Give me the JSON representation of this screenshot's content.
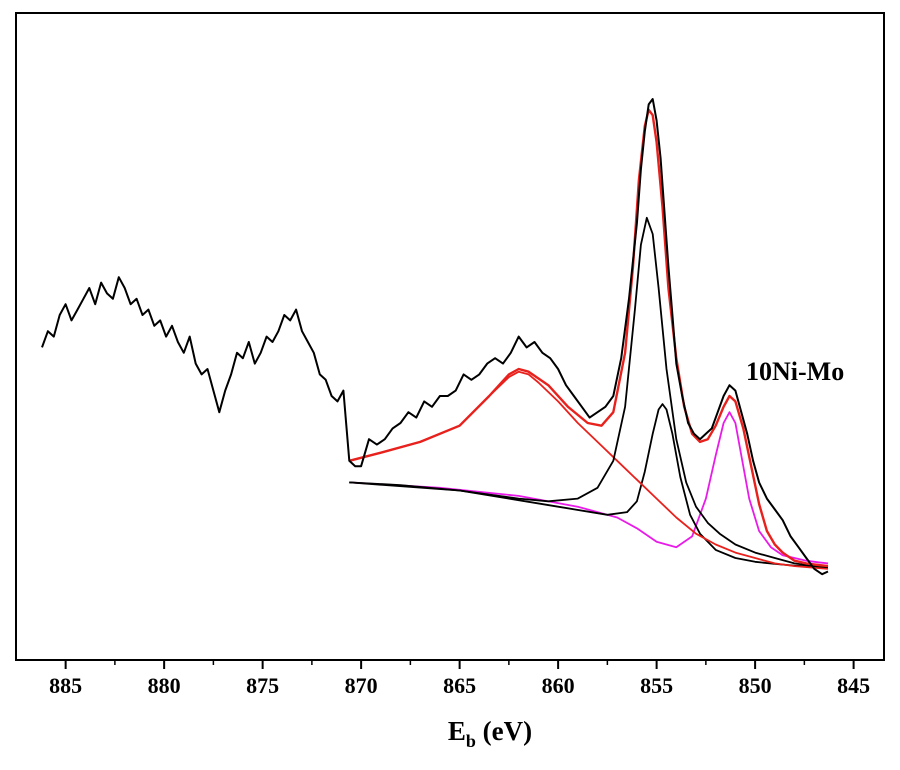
{
  "chart_data": {
    "type": "line",
    "title": "",
    "xlabel_main": "E",
    "xlabel_sub": "b",
    "xlabel_unit": " (eV)",
    "ylabel": "",
    "xlim": [
      888.2,
      843.4
    ],
    "ylim": [
      0,
      100
    ],
    "x_reversed": true,
    "grid": false,
    "xticks": [
      885,
      880,
      875,
      870,
      865,
      860,
      855,
      850,
      845
    ],
    "annotation": "10Ni-Mo",
    "series": [
      {
        "role": "measured",
        "color": "#000000",
        "x": [
          886.2,
          885.9,
          885.6,
          885.3,
          885.0,
          884.7,
          884.4,
          884.1,
          883.8,
          883.5,
          883.2,
          882.9,
          882.6,
          882.3,
          882.0,
          881.7,
          881.4,
          881.1,
          880.8,
          880.5,
          880.2,
          879.9,
          879.6,
          879.3,
          879.0,
          878.7,
          878.4,
          878.1,
          877.8,
          877.5,
          877.2,
          876.9,
          876.6,
          876.3,
          876.0,
          875.7,
          875.4,
          875.1,
          874.8,
          874.5,
          874.2,
          873.9,
          873.6,
          873.3,
          873.0,
          872.7,
          872.4,
          872.1,
          871.8,
          871.5,
          871.2,
          870.9,
          870.6,
          870.3,
          870.0,
          869.6,
          869.2,
          868.8,
          868.4,
          868.0,
          867.6,
          867.2,
          866.8,
          866.4,
          866.0,
          865.6,
          865.2,
          864.8,
          864.4,
          864.0,
          863.6,
          863.2,
          862.8,
          862.4,
          862.0,
          861.6,
          861.2,
          860.8,
          860.4,
          860.0,
          859.6,
          859.2,
          858.8,
          858.4,
          858.0,
          857.6,
          857.2,
          856.8,
          856.4,
          856.0,
          855.8,
          855.6,
          855.4,
          855.2,
          855.0,
          854.8,
          854.6,
          854.4,
          854.2,
          854.0,
          853.7,
          853.4,
          853.1,
          852.8,
          852.5,
          852.2,
          851.9,
          851.6,
          851.3,
          851.0,
          850.7,
          850.4,
          850.1,
          849.8,
          849.4,
          849.0,
          848.6,
          848.2,
          847.8,
          847.4,
          847.0,
          846.6,
          846.3
        ],
        "y": [
          49.0,
          52.0,
          51.0,
          55.0,
          57.0,
          54.0,
          56.0,
          58.0,
          60.0,
          57.0,
          61.0,
          59.0,
          58.0,
          62.0,
          60.0,
          57.0,
          58.0,
          55.0,
          56.0,
          53.0,
          54.0,
          51.0,
          53.0,
          50.0,
          48.0,
          51.0,
          46.0,
          44.0,
          45.0,
          41.0,
          37.0,
          41.0,
          44.0,
          48.0,
          47.0,
          50.0,
          46.0,
          48.0,
          51.0,
          50.0,
          52.0,
          55.0,
          54.0,
          56.0,
          52.0,
          50.0,
          48.0,
          44.0,
          43.0,
          40.0,
          39.0,
          41.0,
          28.0,
          27.0,
          27.0,
          32.0,
          31.0,
          32.0,
          34.0,
          35.0,
          37.0,
          36.0,
          39.0,
          38.0,
          40.0,
          40.0,
          41.0,
          44.0,
          43.0,
          44.0,
          46.0,
          47.0,
          46.0,
          48.0,
          51.0,
          49.0,
          50.0,
          48.0,
          47.0,
          45.0,
          42.0,
          40.0,
          38.0,
          36.0,
          37.0,
          38.0,
          40.0,
          47.0,
          58.0,
          72.0,
          82.0,
          89.0,
          94.0,
          95.0,
          91.0,
          84.0,
          74.0,
          64.0,
          55.0,
          46.0,
          40.0,
          35.0,
          33.0,
          32.0,
          33.0,
          34.0,
          37.0,
          40.0,
          42.0,
          41.0,
          37.0,
          33.0,
          28.0,
          24.0,
          21.0,
          19.0,
          17.0,
          14.0,
          12.0,
          10.0,
          8.0,
          7.0,
          7.5
        ]
      },
      {
        "role": "envelope-fit",
        "color": "#e8211d",
        "x": [
          870.6,
          869.0,
          867.0,
          865.0,
          863.5,
          862.5,
          862.0,
          861.5,
          860.5,
          859.5,
          858.5,
          857.8,
          857.2,
          856.6,
          856.2,
          855.9,
          855.6,
          855.4,
          855.2,
          855.0,
          854.7,
          854.4,
          854.0,
          853.6,
          853.2,
          852.8,
          852.4,
          852.0,
          851.6,
          851.3,
          851.0,
          850.6,
          850.2,
          849.8,
          849.4,
          849.0,
          848.6,
          848.0,
          847.4,
          846.8,
          846.3
        ],
        "y": [
          28.0,
          29.5,
          31.5,
          34.5,
          40.0,
          44.0,
          45.0,
          44.5,
          42.0,
          38.0,
          35.0,
          34.5,
          37.0,
          48.0,
          64.0,
          80.0,
          90.0,
          93.0,
          92.0,
          87.0,
          75.0,
          60.0,
          47.0,
          38.0,
          33.0,
          31.5,
          32.0,
          34.5,
          38.0,
          40.0,
          39.0,
          34.0,
          27.0,
          20.0,
          15.0,
          12.5,
          11.0,
          9.5,
          9.0,
          8.7,
          8.5
        ]
      },
      {
        "role": "component-855.5",
        "color": "#000000",
        "x": [
          870.6,
          868.0,
          865.0,
          862.0,
          860.5,
          859.0,
          858.0,
          857.2,
          856.6,
          856.1,
          855.8,
          855.5,
          855.2,
          854.9,
          854.5,
          854.0,
          853.5,
          853.0,
          852.4,
          851.8,
          851.0,
          850.0,
          849.0,
          848.0,
          847.0,
          846.3
        ],
        "y": [
          24.0,
          23.5,
          22.5,
          21.0,
          20.5,
          21.0,
          23.0,
          28.0,
          38.0,
          56.0,
          68.0,
          73.0,
          70.0,
          60.0,
          45.0,
          32.0,
          24.0,
          19.5,
          16.5,
          14.5,
          12.5,
          11.0,
          10.0,
          9.0,
          8.5,
          8.3
        ]
      },
      {
        "role": "component-862",
        "color": "#e8211d",
        "x": [
          870.6,
          869.0,
          867.0,
          865.0,
          863.5,
          862.5,
          862.0,
          861.5,
          861.0,
          860.0,
          859.0,
          858.0,
          857.0,
          856.0,
          855.0,
          854.0,
          853.0,
          852.0,
          851.0,
          850.0,
          849.0,
          848.0,
          847.0,
          846.3
        ],
        "y": [
          28.0,
          29.5,
          31.5,
          34.5,
          40.0,
          43.5,
          44.5,
          44.0,
          42.5,
          39.0,
          35.0,
          31.5,
          28.0,
          24.5,
          21.0,
          17.5,
          14.5,
          12.5,
          11.0,
          10.0,
          9.0,
          8.5,
          8.2,
          8.0
        ]
      },
      {
        "role": "component-854.7",
        "color": "#000000",
        "x": [
          870.6,
          865.0,
          860.0,
          857.5,
          856.5,
          856.0,
          855.6,
          855.2,
          854.9,
          854.7,
          854.5,
          854.2,
          853.8,
          853.3,
          852.8,
          852.0,
          851.0,
          850.0,
          849.0,
          848.0,
          847.0,
          846.3
        ],
        "y": [
          24.0,
          22.5,
          19.5,
          18.0,
          18.5,
          20.5,
          26.0,
          33.0,
          37.5,
          38.5,
          37.5,
          33.0,
          25.0,
          18.0,
          14.5,
          11.5,
          10.0,
          9.3,
          8.9,
          8.6,
          8.4,
          8.3
        ]
      },
      {
        "role": "component-851",
        "color": "#e81be8",
        "x": [
          870.6,
          866.0,
          862.0,
          859.0,
          857.0,
          856.0,
          855.0,
          854.0,
          853.2,
          852.5,
          852.0,
          851.6,
          851.3,
          851.0,
          850.7,
          850.3,
          849.8,
          849.2,
          848.6,
          848.0,
          847.4,
          846.8,
          846.3
        ],
        "y": [
          24.0,
          23.0,
          21.5,
          19.5,
          17.5,
          15.5,
          13.0,
          12.0,
          14.0,
          21.0,
          29.0,
          35.0,
          37.0,
          35.0,
          29.0,
          21.0,
          15.0,
          12.0,
          10.5,
          10.0,
          9.5,
          9.2,
          9.0
        ]
      },
      {
        "role": "background",
        "color": "#1f1fe0",
        "x": [
          870.6,
          868.0,
          865.0,
          862.0,
          860.0,
          858.0,
          857.0,
          856.0,
          855.5,
          855.0,
          854.5,
          854.0,
          853.0,
          852.0,
          851.0,
          850.0,
          849.0,
          848.0,
          847.0,
          846.3
        ],
        "y": [
          24.0,
          23.5,
          22.5,
          21.0,
          19.5,
          18.0,
          17.0,
          15.5,
          14.0,
          12.5,
          11.0,
          10.3,
          9.8,
          9.4,
          9.0,
          8.6,
          8.3,
          8.1,
          8.0,
          8.0
        ]
      }
    ]
  }
}
